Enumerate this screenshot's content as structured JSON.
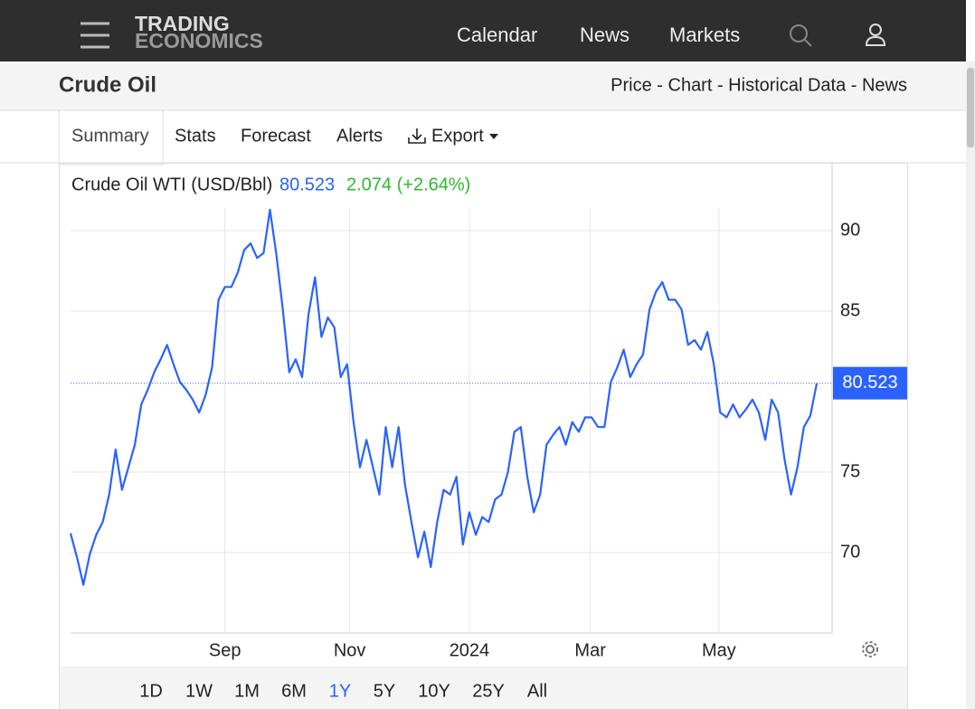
{
  "nav": {
    "logo": [
      "TRADING",
      "ECONOMICS"
    ],
    "items": [
      "Calendar",
      "News",
      "Markets"
    ]
  },
  "header": {
    "title": "Crude Oil",
    "links": "Price - Chart - Historical Data - News"
  },
  "tabs": [
    "Summary",
    "Stats",
    "Forecast",
    "Alerts",
    "Export"
  ],
  "chart_data": {
    "type": "line",
    "title": "Crude Oil WTI (USD/Bbl)",
    "price": 80.523,
    "change": "2.074 (+2.64%)",
    "color": "#2962ff",
    "values": [
      71.2,
      69.7,
      68.0,
      69.9,
      71.1,
      71.9,
      73.6,
      76.4,
      73.9,
      75.3,
      76.7,
      79.2,
      80.1,
      81.2,
      82.0,
      82.9,
      81.7,
      80.6,
      80.1,
      79.5,
      78.7,
      79.8,
      81.5,
      85.7,
      86.5,
      86.5,
      87.4,
      88.8,
      89.2,
      88.3,
      88.6,
      91.3,
      88.5,
      85.1,
      81.2,
      82.0,
      80.9,
      84.8,
      87.1,
      83.4,
      84.6,
      84.0,
      80.9,
      81.7,
      78.1,
      75.3,
      77.0,
      75.3,
      73.6,
      77.8,
      75.3,
      77.8,
      74.2,
      71.9,
      69.7,
      71.3,
      69.1,
      71.9,
      73.9,
      73.6,
      74.7,
      70.5,
      72.5,
      71.1,
      72.2,
      71.9,
      73.3,
      73.6,
      75.0,
      77.5,
      77.8,
      74.7,
      72.5,
      73.6,
      76.7,
      77.3,
      77.8,
      76.7,
      78.1,
      77.5,
      78.4,
      78.4,
      77.8,
      77.8,
      80.6,
      81.5,
      82.6,
      80.9,
      81.7,
      82.3,
      85.1,
      86.2,
      86.8,
      85.7,
      85.7,
      85.1,
      82.9,
      83.2,
      82.6,
      83.7,
      81.7,
      78.7,
      78.4,
      79.2,
      78.4,
      78.9,
      79.5,
      78.7,
      77.0,
      79.5,
      78.7,
      75.8,
      73.6,
      75.3,
      77.8,
      78.5,
      80.5
    ],
    "xlim": [
      0,
      116
    ],
    "xticks": [
      {
        "value": 24.0,
        "label": "Sep"
      },
      {
        "value": 43.4,
        "label": "Nov"
      },
      {
        "value": 62.0,
        "label": "2024"
      },
      {
        "value": 80.8,
        "label": "Mar"
      },
      {
        "value": 100.8,
        "label": "May"
      }
    ],
    "ylim": [
      65,
      92.5
    ],
    "yticks": [
      70,
      75,
      85,
      90
    ],
    "grid": true,
    "ranges": [
      "1D",
      "1W",
      "1M",
      "6M",
      "1Y",
      "5Y",
      "10Y",
      "25Y",
      "All"
    ],
    "selected_range": 4
  }
}
